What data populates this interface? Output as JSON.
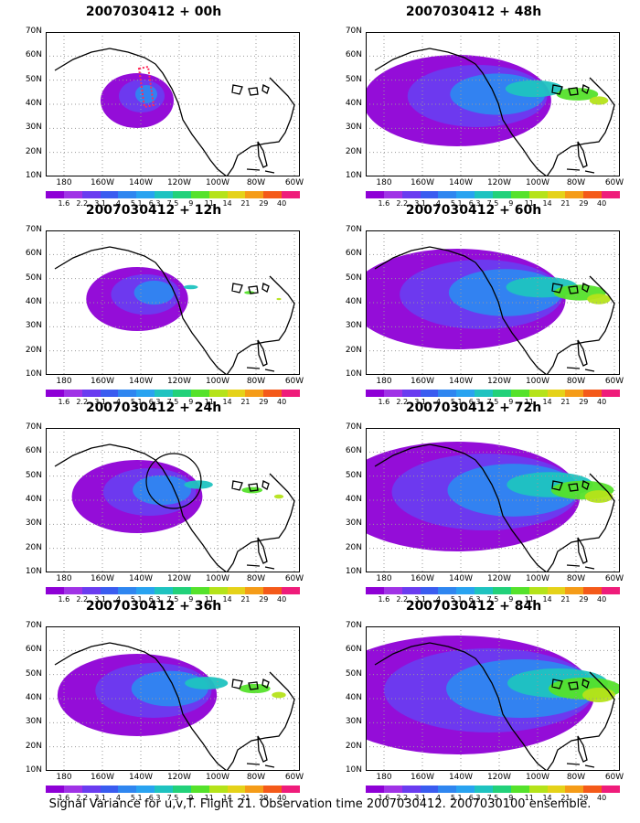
{
  "footer": "Signal Variance for u,v,T. Flight 21. Observation time 2007030412. 2007030100 ensemble.",
  "panels": [
    {
      "title": "2007030412 + 00h"
    },
    {
      "title": "2007030412 + 48h"
    },
    {
      "title": "2007030412 + 12h"
    },
    {
      "title": "2007030412 + 60h"
    },
    {
      "title": "2007030412 + 24h"
    },
    {
      "title": "2007030412 + 72h"
    },
    {
      "title": "2007030412 + 36h"
    },
    {
      "title": "2007030412 + 84h"
    }
  ],
  "lat_labels": [
    "70N",
    "60N",
    "50N",
    "40N",
    "30N",
    "20N",
    "10N"
  ],
  "lon_labels": [
    "180",
    "160W",
    "140W",
    "120W",
    "100W",
    "80W",
    "60W"
  ],
  "colorbar": {
    "labels": [
      "1.6",
      "2.2",
      "3.1",
      "4",
      "5.1",
      "6.3",
      "7.5",
      "9",
      "11",
      "14",
      "21",
      "29",
      "40"
    ],
    "colors": [
      "#8e00d6",
      "#a033e6",
      "#6a3cf0",
      "#3a5cf0",
      "#2f86f0",
      "#29a3f0",
      "#1fc3c0",
      "#22d17a",
      "#55e22b",
      "#b5e31a",
      "#e5d219",
      "#f59c18",
      "#f45a1a",
      "#ef1c7a"
    ]
  }
}
